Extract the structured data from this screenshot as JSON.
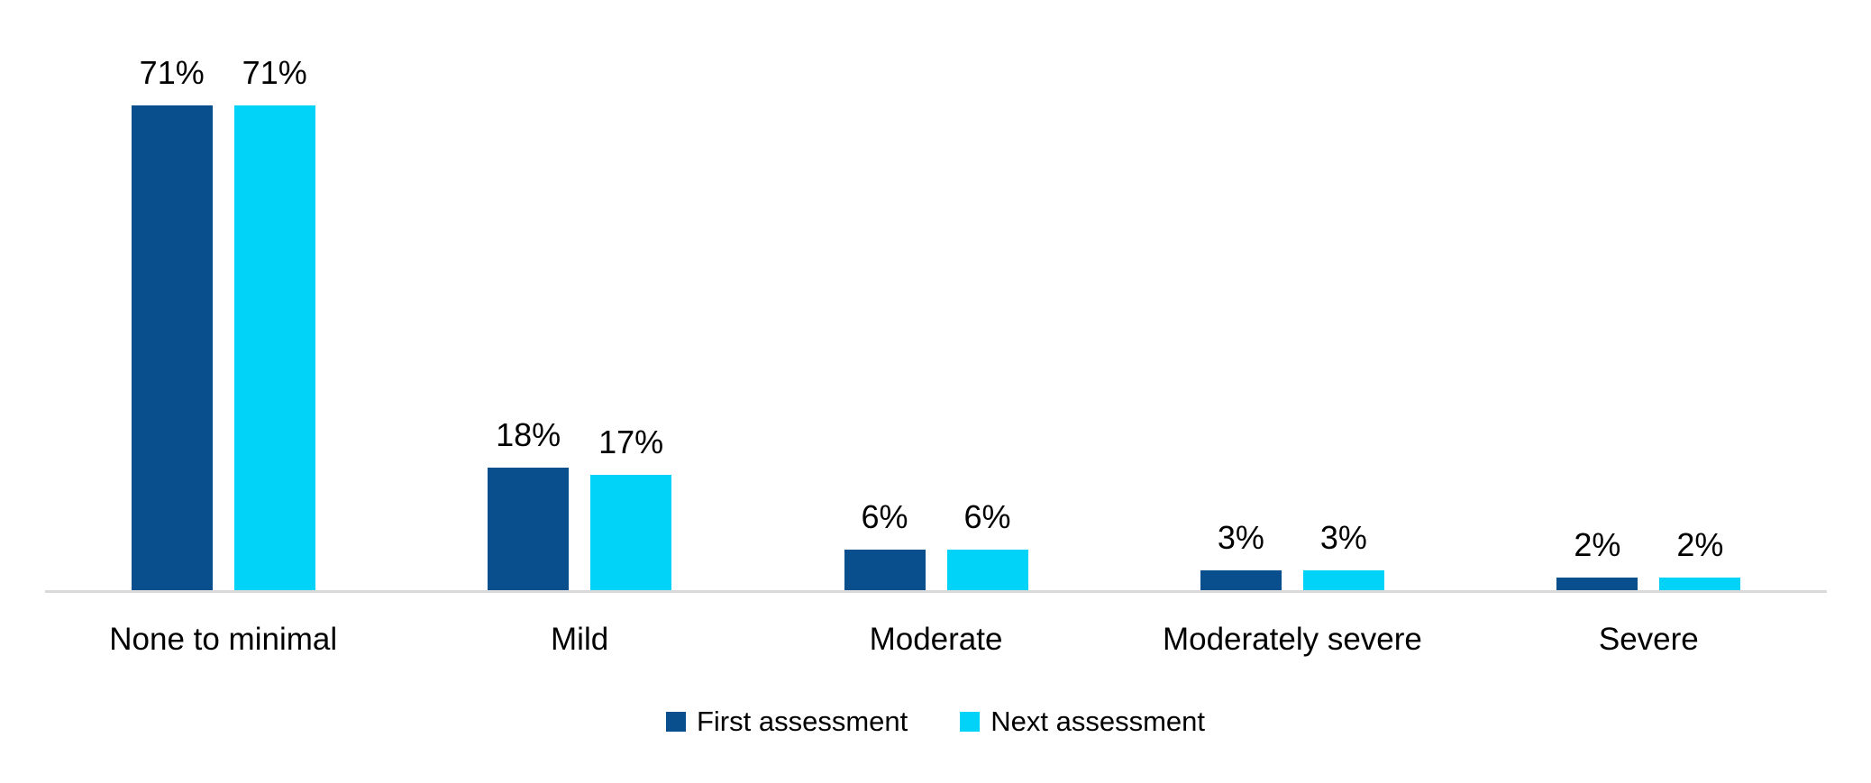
{
  "chart_data": {
    "type": "bar",
    "title": "",
    "xlabel": "",
    "ylabel": "",
    "categories": [
      "None to minimal",
      "Mild",
      "Moderate",
      "Moderately severe",
      "Severe"
    ],
    "series": [
      {
        "name": "First assessment",
        "color": "#094F8D",
        "values": [
          71,
          18,
          6,
          3,
          2
        ],
        "labels": [
          "71%",
          "18%",
          "6%",
          "3%",
          "2%"
        ]
      },
      {
        "name": "Next assessment",
        "color": "#00D2F8",
        "values": [
          71,
          17,
          6,
          3,
          2
        ],
        "labels": [
          "71%",
          "17%",
          "6%",
          "3%",
          "2%"
        ]
      }
    ],
    "ylim": [
      0,
      80
    ],
    "grid": false,
    "y_axis_visible": false,
    "axis_line_color": "#D9D9D9",
    "legend_position": "bottom",
    "value_label_format": "percent"
  }
}
